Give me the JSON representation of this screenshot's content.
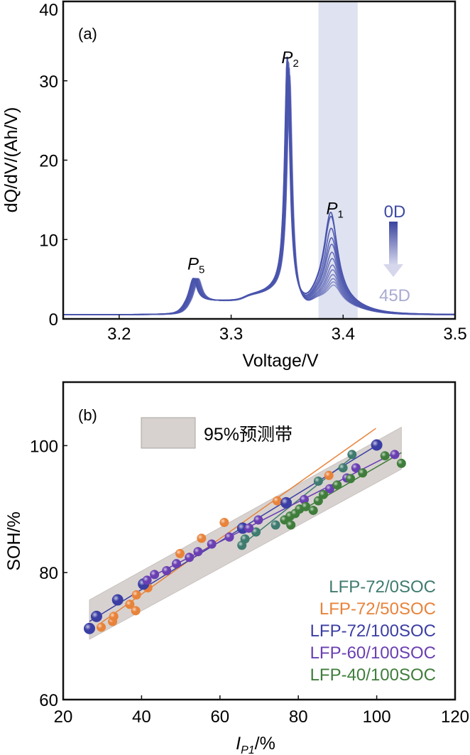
{
  "chart_data": [
    {
      "type": "line",
      "panel_label": "(a)",
      "xlabel": "Voltage/V",
      "ylabel": "dQ/dV/(Ah/V)",
      "xlim": [
        3.15,
        3.5
      ],
      "ylim": [
        0,
        40
      ],
      "xticks": [
        "3.2",
        "3.3",
        "3.4",
        "3.5"
      ],
      "yticks": [
        "0",
        "10",
        "20",
        "30",
        "40"
      ],
      "grid": false,
      "line_color": "#4a55ad",
      "highlight_band": {
        "x": [
          3.378,
          3.413
        ],
        "color": "#dfe2f0"
      },
      "peak_labels": [
        {
          "letter": "P",
          "sub": "5",
          "x": 3.266,
          "y": 5.5
        },
        {
          "letter": "P",
          "sub": "2",
          "x": 3.35,
          "y": 31.5
        },
        {
          "letter": "P",
          "sub": "1",
          "x": 3.39,
          "y": 12.5
        }
      ],
      "aging_arrow": {
        "start": "0D",
        "end": "45D"
      },
      "series_p1_peak_heights": [
        12.8,
        12.3,
        10.8,
        9.6,
        8.8,
        7.8,
        7.0,
        6.2,
        5.6,
        5.0,
        4.5,
        4.1,
        3.7
      ],
      "series_p2_peak_heights": [
        31.2,
        31.8,
        30.5,
        31.0,
        30.2,
        29.8,
        31.5,
        30.0,
        29.5,
        30.8,
        29.2,
        28.8,
        30.0
      ]
    },
    {
      "type": "scatter",
      "panel_label": "(b)",
      "xlabel": {
        "italic": "I",
        "sub": "P1",
        "rest": "/%"
      },
      "ylabel": "SOH/%",
      "xlim": [
        20,
        120
      ],
      "ylim": [
        60,
        110
      ],
      "xticks": [
        "20",
        "40",
        "60",
        "80",
        "100",
        "120"
      ],
      "yticks": [
        "60",
        "80",
        "100"
      ],
      "grid": false,
      "legend_placement": "bottom-right",
      "band": {
        "label": "95%预测带",
        "color": "#d7d2cf",
        "upper": [
          [
            26.7,
            75.7
          ],
          [
            106.3,
            102.9
          ]
        ],
        "lower": [
          [
            26.7,
            69.5
          ],
          [
            106.3,
            96.3
          ]
        ]
      },
      "series": [
        {
          "name": "LFP-72/0SOC",
          "color": "#3f7b6f",
          "points": [
            [
              65.6,
              84.3
            ],
            [
              66.4,
              85.3
            ],
            [
              69.2,
              86.4
            ],
            [
              74.2,
              87.5
            ],
            [
              85.1,
              94.4
            ],
            [
              91.4,
              96.5
            ],
            [
              93.7,
              98.6
            ]
          ]
        },
        {
          "name": "LFP-72/50SOC",
          "color": "#e8833b",
          "points": [
            [
              29.7,
              71.4
            ],
            [
              32.6,
              72.3
            ],
            [
              32.9,
              73.1
            ],
            [
              37.0,
              75.0
            ],
            [
              38.5,
              74.0
            ],
            [
              38.7,
              76.5
            ],
            [
              41.6,
              77.6
            ],
            [
              49.8,
              83.0
            ],
            [
              55.3,
              85.4
            ],
            [
              61.1,
              87.9
            ],
            [
              74.6,
              91.3
            ],
            [
              87.8,
              95.3
            ]
          ]
        },
        {
          "name": "LFP-72/100SOC",
          "color": "#3b3ea3",
          "points": [
            [
              26.7,
              71.2
            ],
            [
              28.5,
              73.1
            ],
            [
              33.9,
              75.7
            ],
            [
              40.5,
              78.2
            ],
            [
              65.8,
              87.0
            ],
            [
              76.9,
              91.0
            ],
            [
              100.0,
              100.1
            ]
          ]
        },
        {
          "name": "LFP-60/100SOC",
          "color": "#6a3fb2",
          "points": [
            [
              41.4,
              78.8
            ],
            [
              43.3,
              79.7
            ],
            [
              46.4,
              80.3
            ],
            [
              48.9,
              81.4
            ],
            [
              52.2,
              82.4
            ],
            [
              54.4,
              83.3
            ],
            [
              57.9,
              84.5
            ],
            [
              62.4,
              85.6
            ],
            [
              67.4,
              87.0
            ],
            [
              69.8,
              88.3
            ],
            [
              81.5,
              91.5
            ],
            [
              88.0,
              93.2
            ],
            [
              92.4,
              94.9
            ],
            [
              94.7,
              96.5
            ],
            [
              104.6,
              98.6
            ]
          ]
        },
        {
          "name": "LFP-40/100SOC",
          "color": "#3f7d3b",
          "points": [
            [
              76.5,
              88.3
            ],
            [
              78.1,
              87.5
            ],
            [
              77.9,
              88.9
            ],
            [
              79.2,
              89.3
            ],
            [
              80.3,
              90.0
            ],
            [
              81.9,
              90.4
            ],
            [
              83.8,
              89.8
            ],
            [
              85.1,
              91.3
            ],
            [
              86.4,
              92.3
            ],
            [
              89.9,
              93.8
            ],
            [
              93.3,
              94.8
            ],
            [
              96.4,
              95.7
            ],
            [
              102.1,
              98.4
            ],
            [
              106.3,
              97.2
            ]
          ]
        }
      ]
    }
  ]
}
